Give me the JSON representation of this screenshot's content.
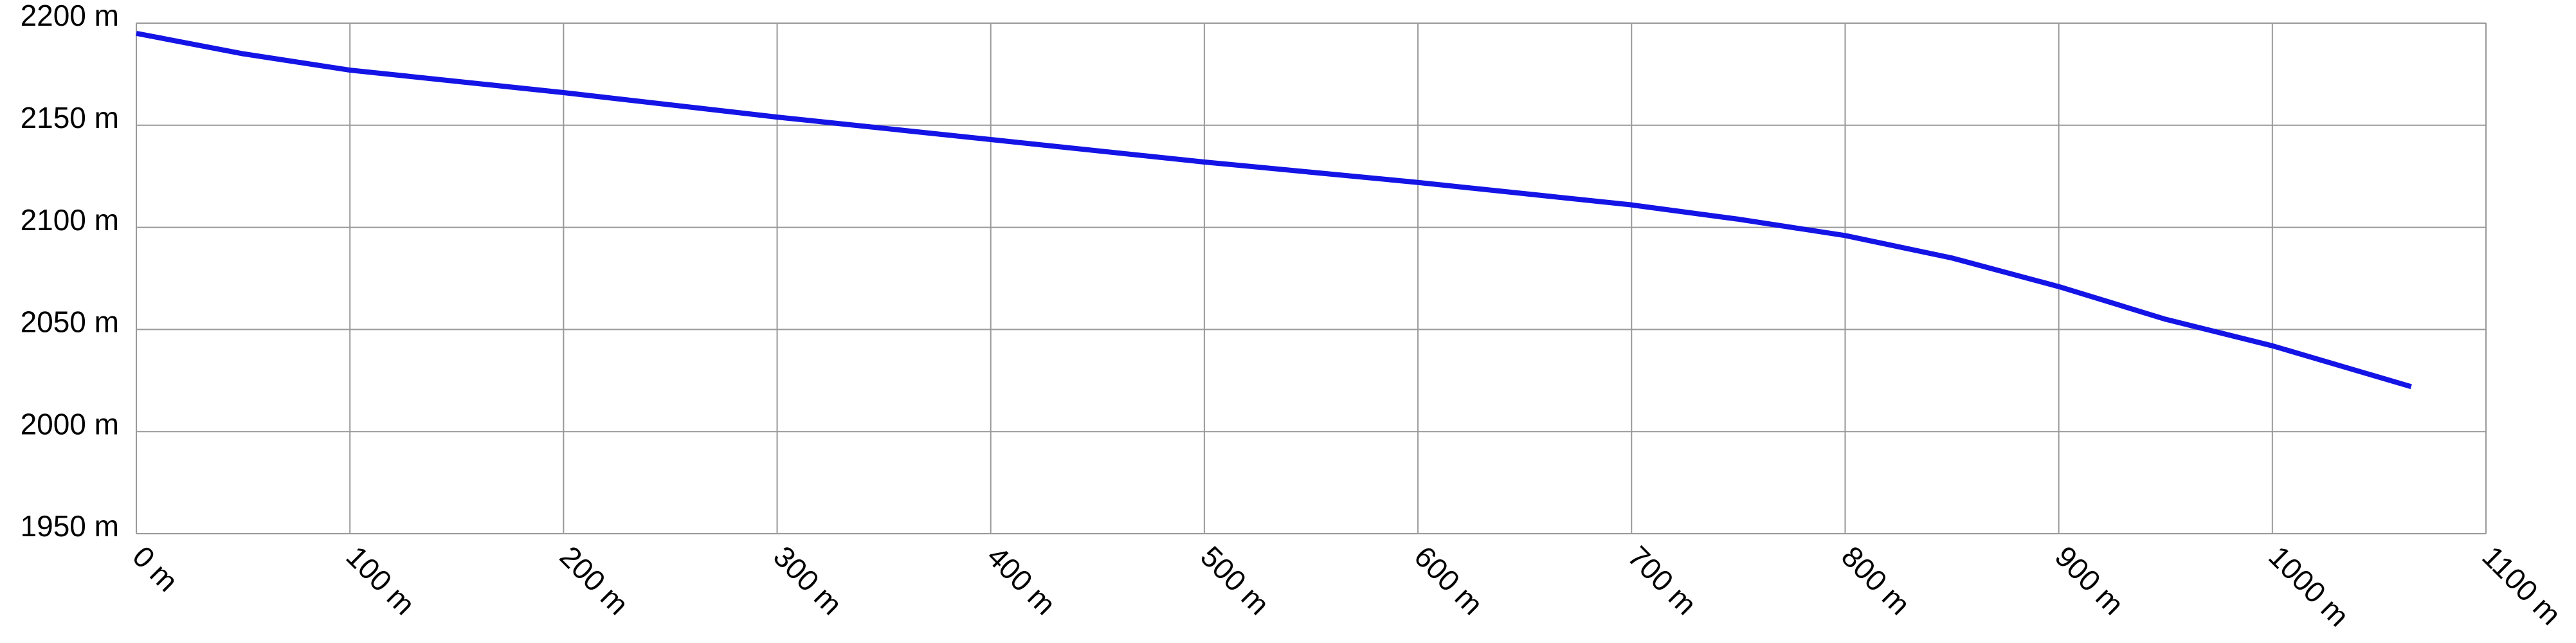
{
  "chart_data": {
    "type": "line",
    "x": [
      0,
      50,
      100,
      200,
      300,
      400,
      500,
      600,
      700,
      750,
      800,
      850,
      900,
      950,
      1000,
      1065
    ],
    "series": [
      {
        "color": "#1414e6",
        "values": [
          2195,
          2185,
          2177,
          2166,
          2154,
          2143,
          2132,
          2122,
          2111,
          2104,
          2096,
          2085,
          2071,
          2055,
          2042,
          2022
        ]
      }
    ],
    "xlim": [
      0,
      1100
    ],
    "xticks": [
      {
        "value": 0,
        "label": "0 m"
      },
      {
        "value": 100,
        "label": "100 m"
      },
      {
        "value": 200,
        "label": "200 m"
      },
      {
        "value": 300,
        "label": "300 m"
      },
      {
        "value": 400,
        "label": "400 m"
      },
      {
        "value": 500,
        "label": "500 m"
      },
      {
        "value": 600,
        "label": "600 m"
      },
      {
        "value": 700,
        "label": "700 m"
      },
      {
        "value": 800,
        "label": "800 m"
      },
      {
        "value": 900,
        "label": "900 m"
      },
      {
        "value": 1000,
        "label": "1000 m"
      },
      {
        "value": 1100,
        "label": "1100 m"
      }
    ],
    "ylim": [
      1950,
      2200
    ],
    "yticks": [
      {
        "value": 1950,
        "label": "1950 m"
      },
      {
        "value": 2000,
        "label": "2000 m"
      },
      {
        "value": 2050,
        "label": "2050 m"
      },
      {
        "value": 2100,
        "label": "2100 m"
      },
      {
        "value": 2150,
        "label": "2150 m"
      },
      {
        "value": 2200,
        "label": "2200 m"
      }
    ],
    "grid": true
  }
}
